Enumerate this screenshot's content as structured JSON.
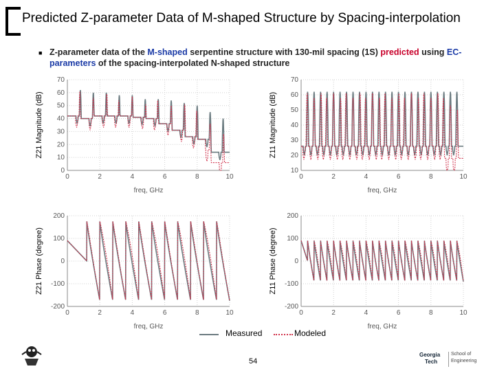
{
  "slide": {
    "title": "Predicted Z-parameter Data of M-shaped Structure by Spacing-interpolation",
    "bullet_parts": [
      "Z-parameter data of the ",
      "M-shaped",
      " serpentine structure with 130-mil spacing (1S) ",
      "predicted",
      " using ",
      "EC-parameters",
      " of the spacing-interpolated N-shaped structure"
    ],
    "page_number": "54",
    "legend": {
      "measured": "Measured",
      "modeled": "Modeled"
    },
    "colors": {
      "measured": "#6b7b80",
      "modeled": "#d0304a",
      "blue_text": "#1a3aa6",
      "red_text": "#c8002a"
    },
    "logo_right_lines": [
      "Georgia",
      "Tech",
      "School of",
      "Engineering"
    ]
  },
  "chart_data": [
    {
      "type": "line",
      "ylabel": "Z21 Magnitude (dB)",
      "xlabel": "freq, GHz",
      "xlim": [
        0,
        10
      ],
      "ylim": [
        0,
        70
      ],
      "xticks": [
        0,
        2,
        4,
        6,
        8,
        10
      ],
      "yticks": [
        0,
        10,
        20,
        30,
        40,
        50,
        60,
        70
      ],
      "pattern": {
        "resonances": [
          0.8,
          1.6,
          2.4,
          3.2,
          4.0,
          4.8,
          5.6,
          6.4,
          7.2,
          8.0,
          8.8,
          9.6
        ],
        "peak_high": [
          62,
          60,
          60,
          58,
          58,
          55,
          55,
          54,
          52,
          50,
          45,
          40
        ],
        "trough_low": [
          36,
          34,
          36,
          36,
          36,
          35,
          34,
          30,
          25,
          20,
          18,
          8
        ]
      }
    },
    {
      "type": "line",
      "ylabel": "Z11 Magnitude (dB)",
      "xlabel": "freq, GHz",
      "xlim": [
        0,
        10
      ],
      "ylim": [
        10,
        70
      ],
      "xticks": [
        0,
        2,
        4,
        6,
        8,
        10
      ],
      "yticks": [
        10,
        20,
        30,
        40,
        50,
        60,
        70
      ],
      "pattern": {
        "resonances": [
          0.4,
          0.8,
          1.2,
          1.6,
          2.0,
          2.4,
          2.8,
          3.2,
          3.6,
          4.0,
          4.4,
          4.8,
          5.2,
          5.6,
          6.0,
          6.4,
          6.8,
          7.2,
          7.6,
          8.0,
          8.4,
          8.8,
          9.2,
          9.6
        ],
        "peak_high": 62,
        "trough_low": 20
      }
    },
    {
      "type": "line",
      "ylabel": "Z21 Phase (degree)",
      "xlabel": "freq, GHz",
      "xlim": [
        0,
        10
      ],
      "ylim": [
        -200,
        200
      ],
      "xticks": [
        0,
        2,
        4,
        6,
        8,
        10
      ],
      "yticks": [
        -200,
        -100,
        0,
        100,
        200
      ],
      "pattern": {
        "jumps": [
          1.2,
          2.0,
          2.8,
          3.6,
          4.4,
          5.2,
          6.0,
          6.8,
          7.6,
          8.4,
          9.2
        ],
        "high": 175,
        "low": -175
      }
    },
    {
      "type": "line",
      "ylabel": "Z11 Phase (degree)",
      "xlabel": "freq, GHz",
      "xlim": [
        0,
        10
      ],
      "ylim": [
        -200,
        200
      ],
      "xticks": [
        0,
        2,
        4,
        6,
        8,
        10
      ],
      "yticks": [
        -200,
        -100,
        0,
        100,
        200
      ],
      "pattern": {
        "jumps": [
          0.4,
          0.8,
          1.2,
          1.6,
          2.0,
          2.4,
          2.8,
          3.2,
          3.6,
          4.0,
          4.4,
          4.8,
          5.2,
          5.6,
          6.0,
          6.4,
          6.8,
          7.2,
          7.6,
          8.0,
          8.4,
          8.8,
          9.2,
          9.6
        ],
        "high": 90,
        "low": -90
      }
    }
  ]
}
